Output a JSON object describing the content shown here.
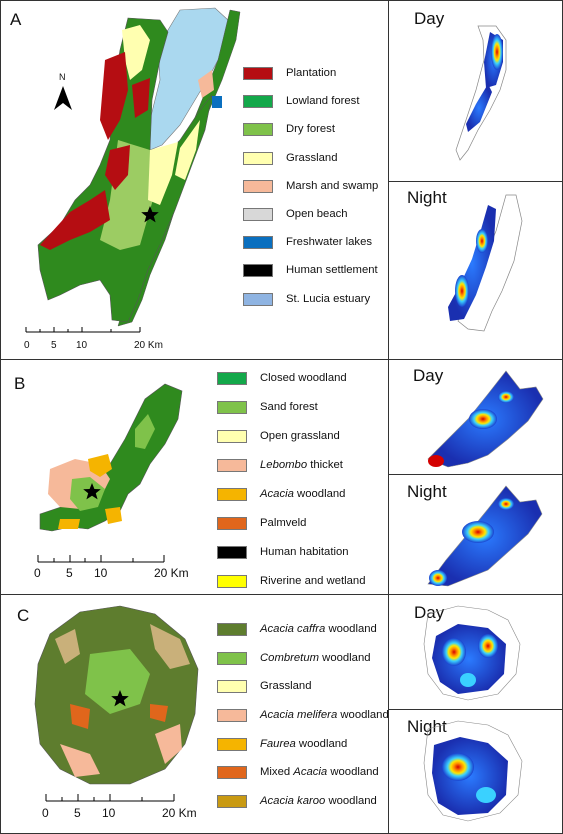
{
  "panels": {
    "A": {
      "letter": "A",
      "north": "N",
      "legend": [
        {
          "label": "Plantation",
          "color": "#b50d12"
        },
        {
          "label": "Lowland forest",
          "color": "#13a84a"
        },
        {
          "label": "Dry forest",
          "color": "#7fc24a"
        },
        {
          "label": "Grassland",
          "color": "#ffffb0"
        },
        {
          "label": "Marsh and swamp",
          "color": "#f6b99a"
        },
        {
          "label": "Open beach",
          "color": "#d8d8d8"
        },
        {
          "label": "Freshwater lakes",
          "color": "#0a6fbf"
        },
        {
          "label": "Human settlement",
          "color": "#000000"
        },
        {
          "label": "St. Lucia estuary",
          "color": "#8fb4e2"
        }
      ],
      "scale": [
        "0",
        "5",
        "10",
        "20 Km"
      ],
      "heat_day": "Day",
      "heat_night": "Night"
    },
    "B": {
      "letter": "B",
      "legend": [
        {
          "label": "Closed woodland",
          "color": "#13a84a"
        },
        {
          "label": "Sand forest",
          "color": "#7fc24a"
        },
        {
          "label": "Open grassland",
          "color": "#ffffb0"
        },
        {
          "label": "Lebombo thicket",
          "color": "#f6b99a",
          "italic": "Lebombo",
          "rest": " thicket"
        },
        {
          "label": "Acacia woodland",
          "color": "#f5b400",
          "italic": "Acacia",
          "rest": " woodland"
        },
        {
          "label": "Palmveld",
          "color": "#e0661c"
        },
        {
          "label": "Human habitation",
          "color": "#000000"
        },
        {
          "label": "Riverine and wetland",
          "color": "#ffff00"
        }
      ],
      "scale": [
        "0",
        "5",
        "10",
        "20 Km"
      ],
      "heat_day": "Day",
      "heat_night": "Night"
    },
    "C": {
      "letter": "C",
      "legend": [
        {
          "label": "Acacia caffra woodland",
          "color": "#5e7d2e",
          "italic": "Acacia caffra",
          "rest": " woodland"
        },
        {
          "label": "Combretum woodland",
          "color": "#7fc24a",
          "italic": "Combretum",
          "rest": " woodland"
        },
        {
          "label": "Grassland",
          "color": "#ffffb0"
        },
        {
          "label": "Acacia melifera woodland",
          "color": "#f6b99a",
          "italic": "Acacia melifera",
          "rest": " woodland"
        },
        {
          "label": "Faurea woodland",
          "color": "#f5b400",
          "italic": "Faurea",
          "rest": " woodland"
        },
        {
          "label": "Mixed Acacia woodland",
          "color": "#e0661c",
          "pre": "Mixed ",
          "italic": "Acacia",
          "rest": " woodland"
        },
        {
          "label": "Acacia karoo woodland",
          "color": "#c99a12",
          "italic": "Acacia karoo",
          "rest": " woodland"
        }
      ],
      "scale": [
        "0",
        "5",
        "10",
        "20 Km"
      ],
      "heat_day": "Day",
      "heat_night": "Night"
    }
  }
}
